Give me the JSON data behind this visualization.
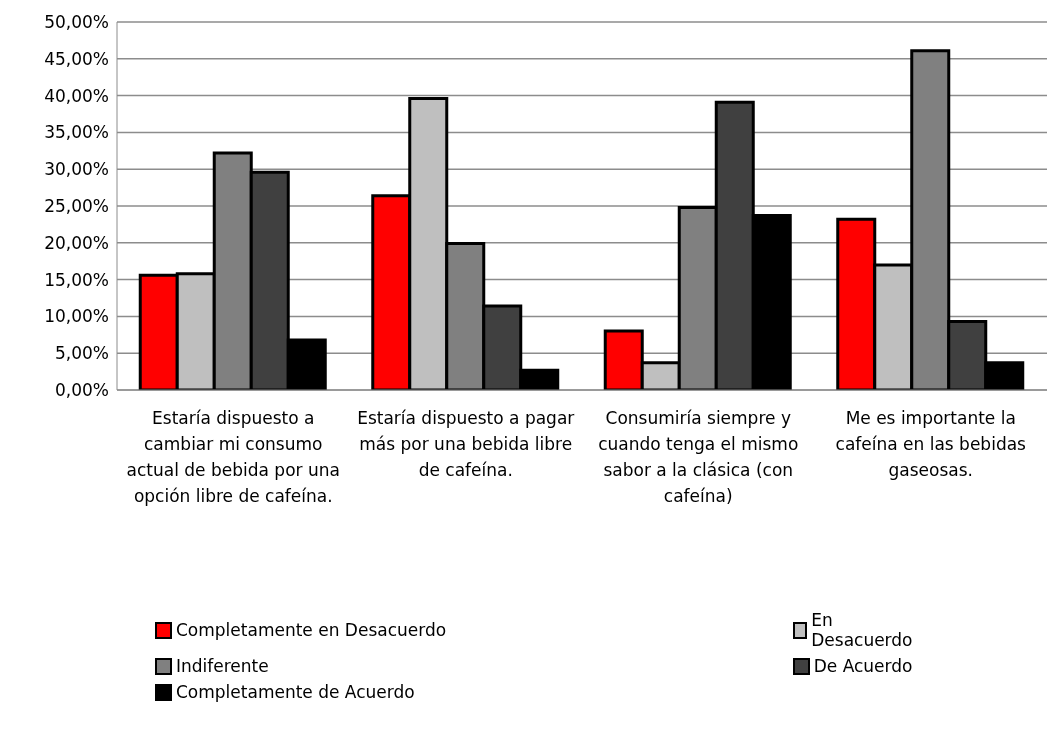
{
  "chart_data": {
    "type": "bar",
    "categories": [
      "Estaría dispuesto a cambiar mi consumo actual de bebida por una opción libre de cafeína.",
      "Estaría dispuesto a pagar más por una bebida libre de cafeína.",
      "Consumiría siempre y cuando tenga el mismo sabor a la clásica (con cafeína)",
      "Me es importante la cafeína en las bebidas gaseosas."
    ],
    "series": [
      {
        "name": "Completamente en Desacuerdo",
        "color": "#ff0000",
        "values": [
          15.6,
          26.4,
          8.0,
          23.2
        ]
      },
      {
        "name": "En Desacuerdo",
        "color": "#bfbfbf",
        "values": [
          15.8,
          39.6,
          3.7,
          17.0
        ]
      },
      {
        "name": "Indiferente",
        "color": "#808080",
        "values": [
          32.2,
          19.9,
          24.8,
          46.1
        ]
      },
      {
        "name": "De Acuerdo",
        "color": "#404040",
        "values": [
          29.6,
          11.4,
          39.1,
          9.3
        ]
      },
      {
        "name": "Completamente de Acuerdo",
        "color": "#000000",
        "values": [
          6.8,
          2.7,
          23.7,
          3.7
        ]
      }
    ],
    "ylim": [
      0,
      50
    ],
    "yticks": [
      {
        "value": 0,
        "label": "0,00%"
      },
      {
        "value": 5,
        "label": "5,00%"
      },
      {
        "value": 10,
        "label": "10,00%"
      },
      {
        "value": 15,
        "label": "15,00%"
      },
      {
        "value": 20,
        "label": "20,00%"
      },
      {
        "value": 25,
        "label": "25,00%"
      },
      {
        "value": 30,
        "label": "30,00%"
      },
      {
        "value": 35,
        "label": "35,00%"
      },
      {
        "value": 40,
        "label": "40,00%"
      },
      {
        "value": 45,
        "label": "45,00%"
      },
      {
        "value": 50,
        "label": "50,00%"
      }
    ],
    "grid": "y",
    "legend": "bottom"
  }
}
